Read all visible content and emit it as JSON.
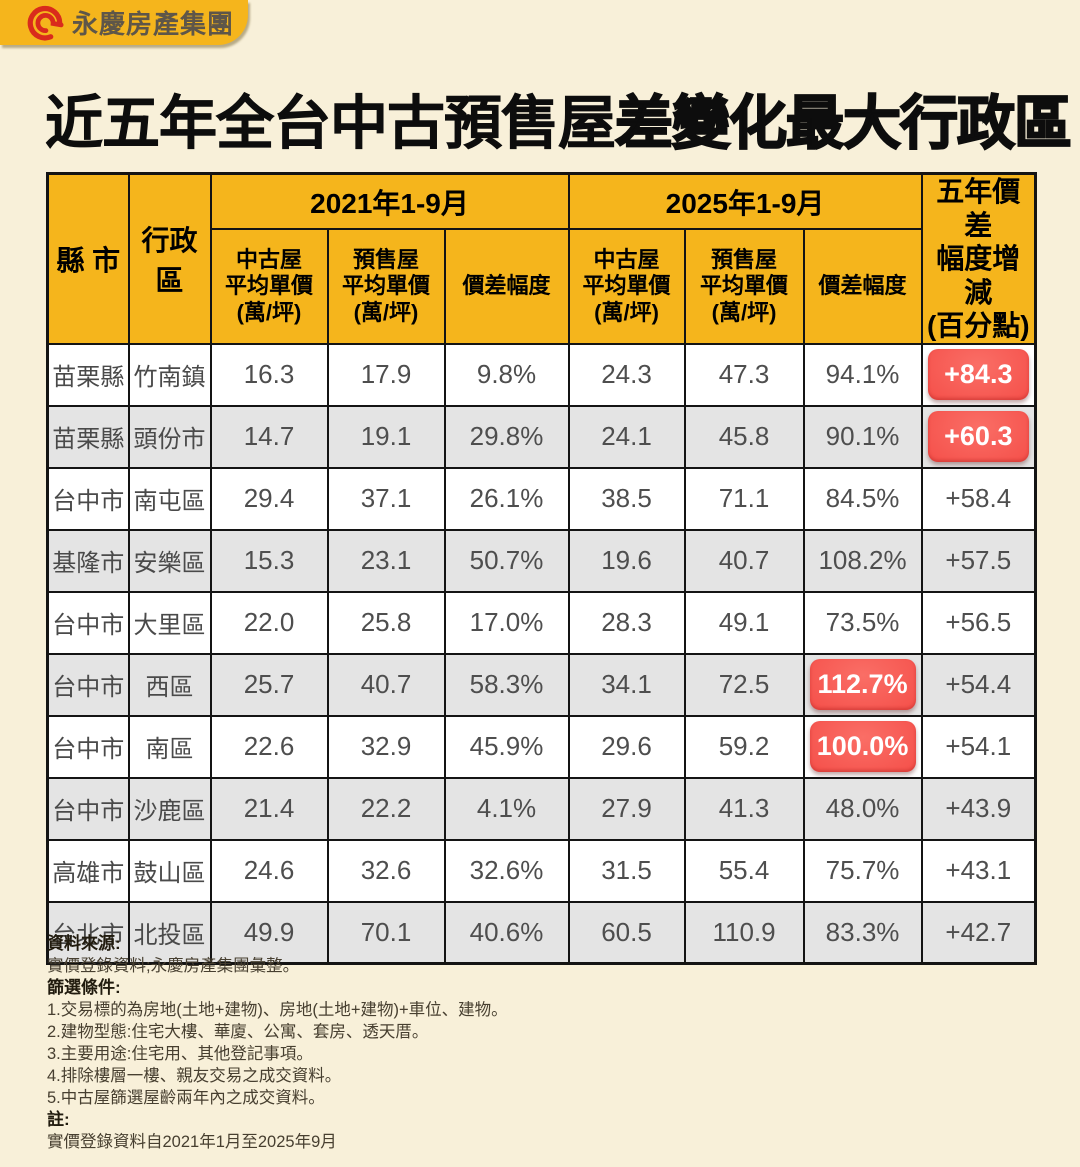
{
  "logo": {
    "text": "永慶房產集團"
  },
  "title": {
    "prefix": "近五年全台中古預售屋",
    "emphasis": "差變化最大行政區"
  },
  "colors": {
    "background": "#F8F0D9",
    "accent_yellow": "#F5B51C",
    "highlight_red": "#F5514B",
    "row_alt_gray": "#E4E4E4",
    "cell_text": "#4E4E4E"
  },
  "table": {
    "headers": {
      "county": "縣 市",
      "district": "行政區",
      "group_2021": "2021年1-9月",
      "group_2025": "2025年1-9月",
      "old_house_avg": "中古屋\n平均單價\n(萬/坪)",
      "presale_avg": "預售屋\n平均單價\n(萬/坪)",
      "gap": "價差幅度",
      "five_year_change": "五年價差\n幅度增減\n(百分點)"
    }
  },
  "chart_data": {
    "type": "table",
    "title": "近五年全台中古預售屋差變化最大行政區",
    "columns": [
      "縣市",
      "行政區",
      "2021中古屋平均單價(萬/坪)",
      "2021預售屋平均單價(萬/坪)",
      "2021價差幅度",
      "2025中古屋平均單價(萬/坪)",
      "2025預售屋平均單價(萬/坪)",
      "2025價差幅度",
      "五年價差幅度增減(百分點)"
    ],
    "rows": [
      {
        "county": "苗栗縣",
        "district": "竹南鎮",
        "old_2021": "16.3",
        "presale_2021": "17.9",
        "gap_2021": "9.8%",
        "old_2025": "24.3",
        "presale_2025": "47.3",
        "gap_2025": "94.1%",
        "gap_2025_highlight": false,
        "change": "+84.3",
        "change_highlight": true
      },
      {
        "county": "苗栗縣",
        "district": "頭份市",
        "old_2021": "14.7",
        "presale_2021": "19.1",
        "gap_2021": "29.8%",
        "old_2025": "24.1",
        "presale_2025": "45.8",
        "gap_2025": "90.1%",
        "gap_2025_highlight": false,
        "change": "+60.3",
        "change_highlight": true
      },
      {
        "county": "台中市",
        "district": "南屯區",
        "old_2021": "29.4",
        "presale_2021": "37.1",
        "gap_2021": "26.1%",
        "old_2025": "38.5",
        "presale_2025": "71.1",
        "gap_2025": "84.5%",
        "gap_2025_highlight": false,
        "change": "+58.4",
        "change_highlight": false
      },
      {
        "county": "基隆市",
        "district": "安樂區",
        "old_2021": "15.3",
        "presale_2021": "23.1",
        "gap_2021": "50.7%",
        "old_2025": "19.6",
        "presale_2025": "40.7",
        "gap_2025": "108.2%",
        "gap_2025_highlight": false,
        "change": "+57.5",
        "change_highlight": false
      },
      {
        "county": "台中市",
        "district": "大里區",
        "old_2021": "22.0",
        "presale_2021": "25.8",
        "gap_2021": "17.0%",
        "old_2025": "28.3",
        "presale_2025": "49.1",
        "gap_2025": "73.5%",
        "gap_2025_highlight": false,
        "change": "+56.5",
        "change_highlight": false
      },
      {
        "county": "台中市",
        "district": "西區",
        "old_2021": "25.7",
        "presale_2021": "40.7",
        "gap_2021": "58.3%",
        "old_2025": "34.1",
        "presale_2025": "72.5",
        "gap_2025": "112.7%",
        "gap_2025_highlight": true,
        "change": "+54.4",
        "change_highlight": false
      },
      {
        "county": "台中市",
        "district": "南區",
        "old_2021": "22.6",
        "presale_2021": "32.9",
        "gap_2021": "45.9%",
        "old_2025": "29.6",
        "presale_2025": "59.2",
        "gap_2025": "100.0%",
        "gap_2025_highlight": true,
        "change": "+54.1",
        "change_highlight": false
      },
      {
        "county": "台中市",
        "district": "沙鹿區",
        "old_2021": "21.4",
        "presale_2021": "22.2",
        "gap_2021": "4.1%",
        "old_2025": "27.9",
        "presale_2025": "41.3",
        "gap_2025": "48.0%",
        "gap_2025_highlight": false,
        "change": "+43.9",
        "change_highlight": false
      },
      {
        "county": "高雄市",
        "district": "鼓山區",
        "old_2021": "24.6",
        "presale_2021": "32.6",
        "gap_2021": "32.6%",
        "old_2025": "31.5",
        "presale_2025": "55.4",
        "gap_2025": "75.7%",
        "gap_2025_highlight": false,
        "change": "+43.1",
        "change_highlight": false
      },
      {
        "county": "台北市",
        "district": "北投區",
        "old_2021": "49.9",
        "presale_2021": "70.1",
        "gap_2021": "40.6%",
        "old_2025": "60.5",
        "presale_2025": "110.9",
        "gap_2025": "83.3%",
        "gap_2025_highlight": false,
        "change": "+42.7",
        "change_highlight": false
      }
    ]
  },
  "notes": [
    {
      "text": "資料來源:",
      "bold": true
    },
    {
      "text": "實價登錄資料;永慶房產集團彙整。",
      "bold": false
    },
    {
      "text": "篩選條件:",
      "bold": true
    },
    {
      "text": "1.交易標的為房地(土地+建物)、房地(土地+建物)+車位、建物。",
      "bold": false
    },
    {
      "text": "2.建物型態:住宅大樓、華廈、公寓、套房、透天厝。",
      "bold": false
    },
    {
      "text": "3.主要用途:住宅用、其他登記事項。",
      "bold": false
    },
    {
      "text": "4.排除樓層一樓、親友交易之成交資料。",
      "bold": false
    },
    {
      "text": "5.中古屋篩選屋齡兩年內之成交資料。",
      "bold": false
    },
    {
      "text": "註:",
      "bold": true
    },
    {
      "text": "實價登錄資料自2021年1月至2025年9月",
      "bold": false
    }
  ]
}
